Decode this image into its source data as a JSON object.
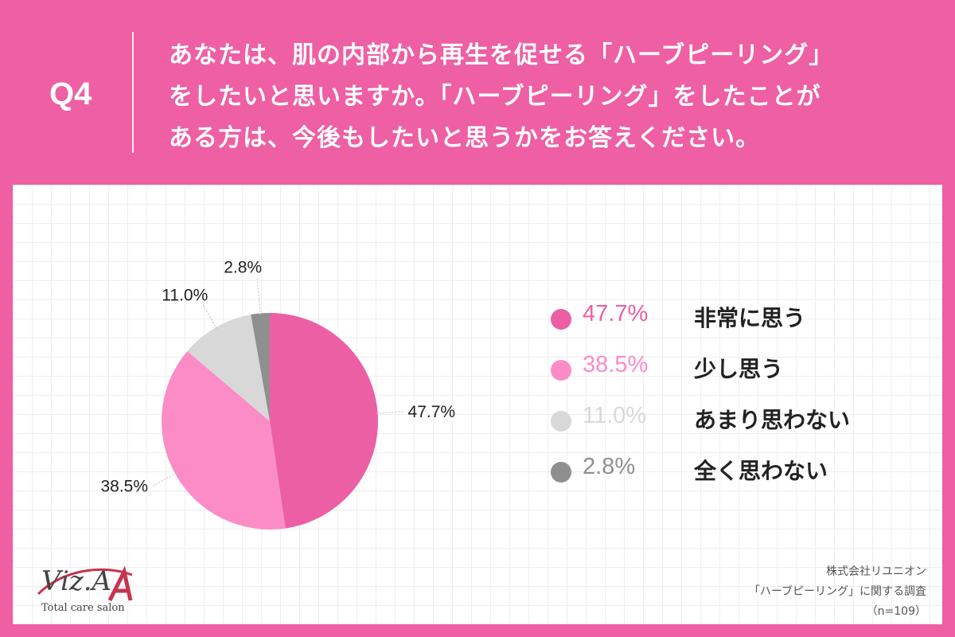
{
  "header": {
    "qnum": "Q4",
    "lines": [
      "あなたは、肌の内部から再生を促せる「ハーブピーリング」",
      "をしたいと思いますか。「ハーブピーリング」をしたことが",
      "ある方は、今後もしたいと思うかをお答えください。"
    ]
  },
  "chart_data": {
    "type": "pie",
    "title": "",
    "categories": [
      "非常に思う",
      "少し思う",
      "あまり思わない",
      "全く思わない"
    ],
    "values": [
      47.7,
      38.5,
      11.0,
      2.8
    ],
    "value_labels": [
      "47.7%",
      "38.5%",
      "11.0%",
      "2.8%"
    ],
    "colors": [
      "#ec5fa5",
      "#fb8cc6",
      "#d8d8d8",
      "#8f8f8f"
    ],
    "start_angle": "12 o'clock",
    "direction": "clockwise",
    "legend_position": "right"
  },
  "legend": {
    "pct_colors": [
      "#ec5fa5",
      "#fb8cc6",
      "#d8d8d8",
      "#8f8f8f"
    ]
  },
  "logo": {
    "name": "Viz.A",
    "sub": "Total care salon"
  },
  "source": {
    "lines": [
      "株式会社リユニオン",
      "「ハーブピーリング」に関する調査",
      "（n=109）"
    ]
  }
}
